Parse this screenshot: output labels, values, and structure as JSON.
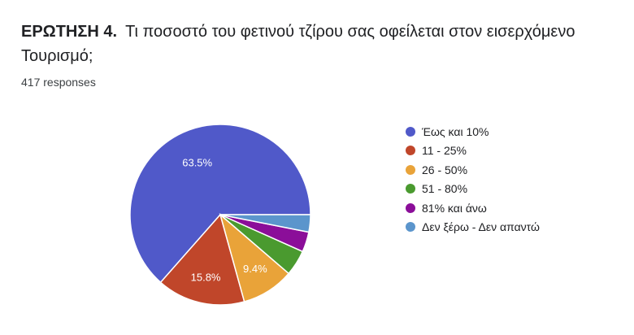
{
  "question": {
    "number": "ΕΡΩΤΗΣΗ 4.",
    "text": "Τι ποσοστό του φετινού τζίρου σας οφείλεται στον εισερχόμενο Τουρισμό;"
  },
  "responses_label": "417 responses",
  "chart_data": {
    "type": "pie",
    "categories": [
      "Έως και 10%",
      "11 - 25%",
      "26 - 50%",
      "51 - 80%",
      "81% και άνω",
      "Δεν ξέρω - Δεν απαντώ"
    ],
    "values": [
      63.5,
      15.8,
      9.4,
      4.6,
      3.6,
      3.1
    ],
    "data_labels": [
      "63.5%",
      "15.8%",
      "9.4%",
      "",
      "",
      ""
    ],
    "colors": [
      "#5059c9",
      "#c0462a",
      "#e9a339",
      "#4a9a2f",
      "#8b0e99",
      "#5b95cc"
    ],
    "legend_position": "right"
  }
}
